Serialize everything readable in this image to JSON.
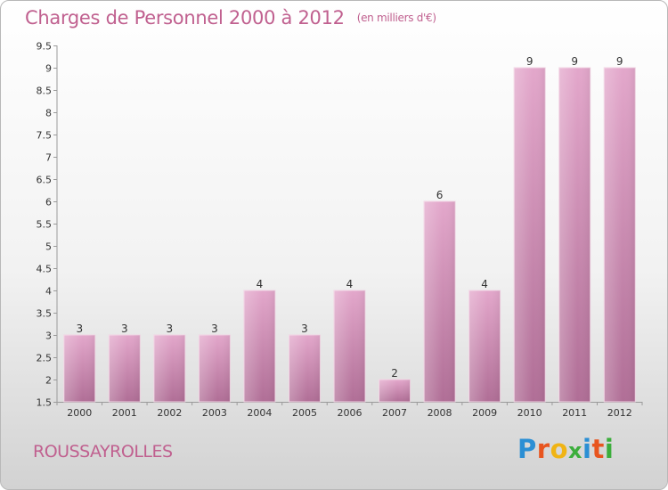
{
  "header": {
    "title": "Charges de Personnel 2000 à 2012",
    "subtitle": "(en milliers d'€)"
  },
  "footer": {
    "commune": "ROUSSAYROLLES",
    "logo_letters": [
      "P",
      "r",
      "o",
      "x",
      "i",
      "t",
      "i"
    ],
    "logo_colors": [
      "#2b8fd4",
      "#e8551f",
      "#f0b414",
      "#3cae3c",
      "#2b8fd4",
      "#e8551f",
      "#3cae3c"
    ]
  },
  "colors": {
    "bar_top": "#e3a7cb",
    "bar_bottom": "#b06e96",
    "text": "#c0608f"
  },
  "chart_data": {
    "type": "bar",
    "title": "Charges de Personnel 2000 à 2012",
    "subtitle": "(en milliers d'€)",
    "categories": [
      "2000",
      "2001",
      "2002",
      "2003",
      "2004",
      "2005",
      "2006",
      "2007",
      "2008",
      "2009",
      "2010",
      "2011",
      "2012"
    ],
    "values": [
      3,
      3,
      3,
      3,
      4,
      3,
      4,
      2,
      6,
      4,
      9,
      9,
      9
    ],
    "value_labels": [
      "3",
      "3",
      "3",
      "3",
      "4",
      "3",
      "4",
      "2",
      "6",
      "4",
      "9",
      "9",
      "9"
    ],
    "ylim": [
      1.5,
      9.5
    ],
    "yticks": [
      1.5,
      2,
      2.5,
      3,
      3.5,
      4,
      4.5,
      5,
      5.5,
      6,
      6.5,
      7,
      7.5,
      8,
      8.5,
      9,
      9.5
    ],
    "ytick_labels": [
      "1.5",
      "2",
      "2.5",
      "3",
      "3.5",
      "4",
      "4.5",
      "5",
      "5.5",
      "6",
      "6.5",
      "7",
      "7.5",
      "8",
      "8.5",
      "9",
      "9.5"
    ],
    "xlabel": "",
    "ylabel": "",
    "grid": false
  }
}
